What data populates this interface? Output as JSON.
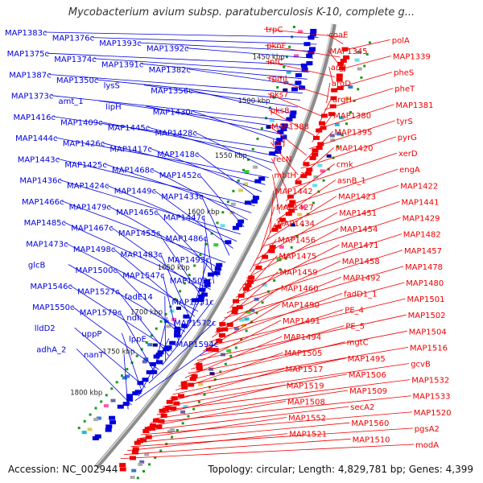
{
  "title": "Mycobacterium avium subsp. paratuberculosis K-10, complete g...",
  "footer": {
    "accession": "Accession: NC_002944",
    "summary": "Topology: circular; Length: 4,829,781 bp; Genes: 4,399"
  },
  "colors": {
    "forward_strand": "#0000dd",
    "reverse_strand": "#ee0000",
    "backbone": "#9a9a9a",
    "tick_marker": "#1a9a1a"
  },
  "scale_labels": [
    "1450 kbp",
    "1500 kbp",
    "1550 kbp",
    "1600 kbp",
    "1650 kbp",
    "1700 kbp",
    "1750 kbp",
    "1800 kbp"
  ],
  "left_labels": [
    "MAP1383c",
    "MAP1376c",
    "MAP1393c",
    "MAP1392c",
    "MAP1375c",
    "MAP1374c",
    "MAP1391c",
    "MAP1382c",
    "MAP1387c",
    "MAP1350c",
    "lysS",
    "MAP1356c",
    "MAP1373c",
    "amt_1",
    "lipH",
    "MAP1430c",
    "MAP1416c",
    "MAP1409c",
    "MAP1445c",
    "MAP1428c",
    "MAP1444c",
    "MAP1426c",
    "MAP1417c",
    "MAP1418c",
    "MAP1443c",
    "MAP1425c",
    "MAP1468c",
    "MAP1452c",
    "MAP1436c",
    "MAP1424c",
    "MAP1449c",
    "MAP1433c",
    "MAP1466c",
    "MAP1479c",
    "MAP1465c",
    "MAP1447c",
    "MAP1485c",
    "MAP1467c",
    "MAP1455c",
    "MAP1486c",
    "MAP1473c",
    "MAP1498c",
    "MAP1483c",
    "MAP1493c",
    "glcB",
    "MAP1500c",
    "MAP1547c",
    "MAP1503c",
    "MAP1546c",
    "MAP1527c",
    "fadE14",
    "MAP1531c",
    "MAP1550c",
    "MAP1579c",
    "ndh",
    "MAP1572c",
    "lldD2",
    "uppP",
    "lppE",
    "MAP1594c",
    "adhA_2",
    "nanT"
  ],
  "right_labels": [
    "trpC",
    "coaE",
    "polA",
    "pknF",
    "MAP1345",
    "MAP1339",
    "infC",
    "argJ",
    "pheS",
    "rpmI",
    "argD",
    "pheT",
    "pks7",
    "argH",
    "MAP1381",
    "pks8",
    "MAP1380",
    "tyrS",
    "MAP1388",
    "MAP1395",
    "pyrG",
    "lprJ",
    "MAP1420",
    "xerD",
    "recN",
    "cmk",
    "engA",
    "mbtH_1",
    "asnB_1",
    "MAP1422",
    "MAP1442",
    "MAP1423",
    "MAP1441",
    "MAP1427",
    "MAP1451",
    "MAP1429",
    "MAP1434",
    "MAP1454",
    "MAP1482",
    "MAP1456",
    "MAP1471",
    "MAP1457",
    "MAP1475",
    "MAP1458",
    "MAP1478",
    "MAP1459",
    "MAP1492",
    "MAP1480",
    "MAP1460",
    "fadD1_1",
    "MAP1501",
    "MAP1490",
    "PE_4",
    "MAP1502",
    "MAP1491",
    "PE_5",
    "MAP1504",
    "MAP1494",
    "mgtC",
    "MAP1516",
    "MAP1505",
    "MAP1495",
    "gcvB",
    "MAP1517",
    "MAP1506",
    "MAP1532",
    "MAP1519",
    "MAP1509",
    "MAP1533",
    "MAP1508",
    "secA2",
    "MAP1520",
    "MAP1552",
    "MAP1560",
    "pgsA2",
    "MAP1521",
    "MAP1510",
    "modA"
  ]
}
